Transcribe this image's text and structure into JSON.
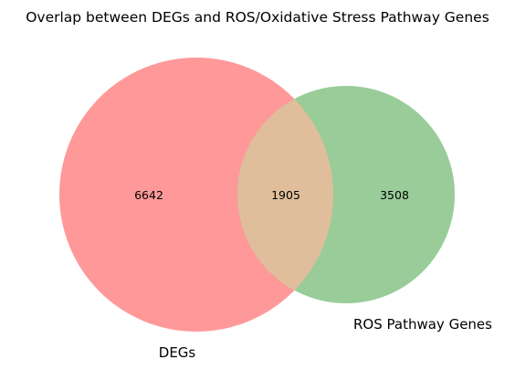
{
  "title": "Overlap between DEGs and ROS/Oxidative Stress Pathway Genes",
  "sets": [
    {
      "name": "DEGs",
      "color": "#ff9999"
    },
    {
      "name": "ROS Pathway Genes",
      "color": "#99cc99"
    }
  ],
  "overlap_color": "#e0be9b",
  "counts": {
    "only_a": "6642",
    "both": "1905",
    "only_b": "3508"
  }
}
